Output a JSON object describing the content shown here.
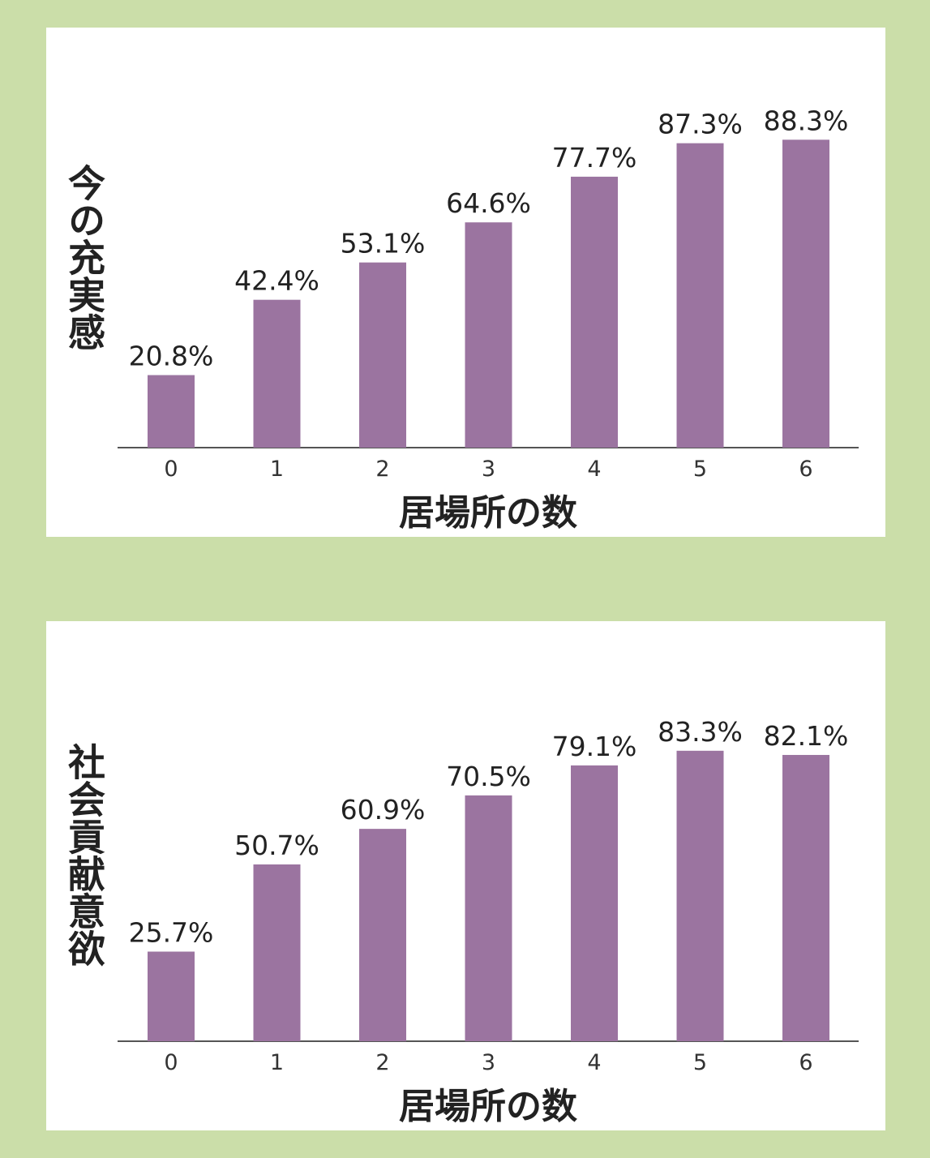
{
  "colors": {
    "background": "#cbdea9",
    "panel": "#ffffff",
    "bar": "#9b74a0",
    "axis": "#555555",
    "text": "#222222"
  },
  "chart_data": [
    {
      "type": "bar",
      "ylabel": "今の充実感",
      "xlabel": "居場所の数",
      "categories": [
        "0",
        "1",
        "2",
        "3",
        "4",
        "5",
        "6"
      ],
      "values": [
        20.8,
        42.4,
        53.1,
        64.6,
        77.7,
        87.3,
        88.3
      ],
      "value_labels": [
        "20.8%",
        "42.4%",
        "53.1%",
        "64.6%",
        "77.7%",
        "87.3%",
        "88.3%"
      ],
      "ylim": [
        0,
        100
      ],
      "grid": false
    },
    {
      "type": "bar",
      "ylabel": "社会貢献意欲",
      "xlabel": "居場所の数",
      "categories": [
        "0",
        "1",
        "2",
        "3",
        "4",
        "5",
        "6"
      ],
      "values": [
        25.7,
        50.7,
        60.9,
        70.5,
        79.1,
        83.3,
        82.1
      ],
      "value_labels": [
        "25.7%",
        "50.7%",
        "60.9%",
        "70.5%",
        "79.1%",
        "83.3%",
        "82.1%"
      ],
      "ylim": [
        0,
        100
      ],
      "grid": false
    }
  ]
}
